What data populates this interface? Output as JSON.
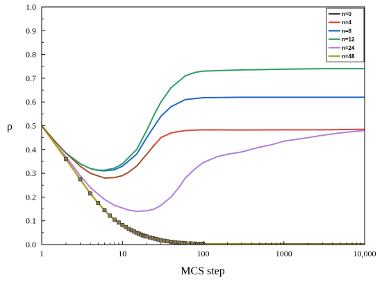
{
  "chart_data": {
    "type": "line",
    "title": "",
    "xlabel": "MCS step",
    "ylabel": "ρ",
    "x_scale": "log",
    "xlim": [
      1,
      10000
    ],
    "ylim": [
      0,
      1
    ],
    "x_ticks": [
      1,
      10,
      100,
      1000,
      10000
    ],
    "x_tick_labels": [
      "1",
      "10",
      "100",
      "1000",
      "10,000"
    ],
    "y_ticks": [
      0,
      0.1,
      0.2,
      0.3,
      0.4,
      0.5,
      0.6,
      0.7,
      0.8,
      0.9,
      1.0
    ],
    "y_tick_labels": [
      "0.0",
      "0.1",
      "0.2",
      "0.3",
      "0.4",
      "0.5",
      "0.6",
      "0.7",
      "0.8",
      "0.9",
      "1.0"
    ],
    "grid": false,
    "legend_position": "top-right",
    "series": [
      {
        "name": "n=0",
        "color": "#3a3a3a",
        "points": [
          [
            1,
            0.5
          ],
          [
            2,
            0.36
          ],
          [
            3,
            0.275
          ],
          [
            4,
            0.215
          ],
          [
            5,
            0.175
          ],
          [
            6,
            0.145
          ],
          [
            7,
            0.122
          ],
          [
            8,
            0.105
          ],
          [
            10,
            0.082
          ],
          [
            12,
            0.066
          ],
          [
            15,
            0.05
          ],
          [
            20,
            0.034
          ],
          [
            30,
            0.018
          ],
          [
            50,
            0.008
          ],
          [
            100,
            0.003
          ],
          [
            1000,
            0.003
          ],
          [
            10000,
            0.003
          ]
        ]
      },
      {
        "name": "n=4",
        "color": "#e8413c",
        "points": [
          [
            1,
            0.5
          ],
          [
            1.5,
            0.43
          ],
          [
            2,
            0.385
          ],
          [
            3,
            0.33
          ],
          [
            4,
            0.3
          ],
          [
            6,
            0.28
          ],
          [
            8,
            0.282
          ],
          [
            10,
            0.29
          ],
          [
            12,
            0.305
          ],
          [
            15,
            0.33
          ],
          [
            20,
            0.38
          ],
          [
            25,
            0.42
          ],
          [
            30,
            0.45
          ],
          [
            40,
            0.47
          ],
          [
            60,
            0.48
          ],
          [
            100,
            0.483
          ],
          [
            300,
            0.482
          ],
          [
            1000,
            0.483
          ],
          [
            3000,
            0.483
          ],
          [
            10000,
            0.485
          ]
        ]
      },
      {
        "name": "n=8",
        "color": "#1f68c8",
        "points": [
          [
            1,
            0.5
          ],
          [
            1.5,
            0.43
          ],
          [
            2,
            0.385
          ],
          [
            3,
            0.34
          ],
          [
            4,
            0.32
          ],
          [
            5,
            0.312
          ],
          [
            6,
            0.31
          ],
          [
            8,
            0.315
          ],
          [
            10,
            0.33
          ],
          [
            15,
            0.38
          ],
          [
            20,
            0.45
          ],
          [
            25,
            0.5
          ],
          [
            30,
            0.54
          ],
          [
            40,
            0.58
          ],
          [
            60,
            0.61
          ],
          [
            100,
            0.618
          ],
          [
            300,
            0.62
          ],
          [
            1000,
            0.62
          ],
          [
            3000,
            0.62
          ],
          [
            10000,
            0.62
          ]
        ]
      },
      {
        "name": "n=12",
        "color": "#2e9e64",
        "points": [
          [
            1,
            0.5
          ],
          [
            1.5,
            0.43
          ],
          [
            2,
            0.385
          ],
          [
            3,
            0.34
          ],
          [
            4,
            0.32
          ],
          [
            5,
            0.313
          ],
          [
            6,
            0.313
          ],
          [
            8,
            0.322
          ],
          [
            10,
            0.34
          ],
          [
            15,
            0.4
          ],
          [
            20,
            0.48
          ],
          [
            25,
            0.55
          ],
          [
            30,
            0.6
          ],
          [
            40,
            0.66
          ],
          [
            60,
            0.71
          ],
          [
            80,
            0.725
          ],
          [
            100,
            0.73
          ],
          [
            300,
            0.735
          ],
          [
            1000,
            0.738
          ],
          [
            3000,
            0.74
          ],
          [
            10000,
            0.74
          ]
        ]
      },
      {
        "name": "n=24",
        "color": "#b07fe0",
        "points": [
          [
            1,
            0.5
          ],
          [
            1.5,
            0.42
          ],
          [
            2,
            0.37
          ],
          [
            3,
            0.29
          ],
          [
            4,
            0.24
          ],
          [
            6,
            0.19
          ],
          [
            8,
            0.165
          ],
          [
            12,
            0.145
          ],
          [
            15,
            0.14
          ],
          [
            20,
            0.142
          ],
          [
            25,
            0.15
          ],
          [
            30,
            0.165
          ],
          [
            40,
            0.2
          ],
          [
            50,
            0.24
          ],
          [
            60,
            0.28
          ],
          [
            80,
            0.32
          ],
          [
            100,
            0.345
          ],
          [
            150,
            0.37
          ],
          [
            200,
            0.38
          ],
          [
            300,
            0.39
          ],
          [
            500,
            0.41
          ],
          [
            700,
            0.42
          ],
          [
            1000,
            0.435
          ],
          [
            2000,
            0.45
          ],
          [
            3000,
            0.46
          ],
          [
            5000,
            0.47
          ],
          [
            7000,
            0.475
          ],
          [
            10000,
            0.48
          ]
        ]
      },
      {
        "name": "n=48",
        "color": "#b5a020",
        "points": [
          [
            1,
            0.5
          ],
          [
            2,
            0.36
          ],
          [
            3,
            0.275
          ],
          [
            4,
            0.215
          ],
          [
            5,
            0.175
          ],
          [
            6,
            0.145
          ],
          [
            7,
            0.122
          ],
          [
            8,
            0.105
          ],
          [
            10,
            0.082
          ],
          [
            12,
            0.066
          ],
          [
            15,
            0.05
          ],
          [
            20,
            0.034
          ],
          [
            30,
            0.018
          ],
          [
            50,
            0.008
          ],
          [
            100,
            0.002
          ],
          [
            1000,
            0.001
          ],
          [
            10000,
            0.001
          ]
        ]
      }
    ],
    "markers": {
      "series": "n=0",
      "x": [
        2,
        3,
        4,
        5,
        6,
        7,
        8,
        9,
        10,
        11,
        12,
        13,
        14,
        15,
        16,
        17,
        18,
        19,
        20,
        22,
        24,
        26,
        28,
        30,
        33,
        36,
        40,
        45,
        50,
        55,
        60,
        70,
        80,
        90,
        100
      ],
      "y": [
        0.36,
        0.275,
        0.215,
        0.175,
        0.145,
        0.122,
        0.105,
        0.093,
        0.082,
        0.074,
        0.066,
        0.06,
        0.055,
        0.05,
        0.046,
        0.042,
        0.039,
        0.036,
        0.034,
        0.03,
        0.027,
        0.024,
        0.021,
        0.018,
        0.016,
        0.014,
        0.012,
        0.01,
        0.008,
        0.007,
        0.006,
        0.005,
        0.004,
        0.003,
        0.003
      ]
    },
    "brown_overlap": {
      "color": "#8b5a2b",
      "points": [
        [
          1,
          0.5
        ],
        [
          1.5,
          0.43
        ],
        [
          2,
          0.385
        ],
        [
          3,
          0.33
        ],
        [
          4,
          0.3
        ],
        [
          6,
          0.28
        ],
        [
          8,
          0.282
        ],
        [
          10,
          0.29
        ],
        [
          12,
          0.305
        ],
        [
          15,
          0.33
        ],
        [
          20,
          0.38
        ],
        [
          25,
          0.42
        ]
      ]
    }
  }
}
